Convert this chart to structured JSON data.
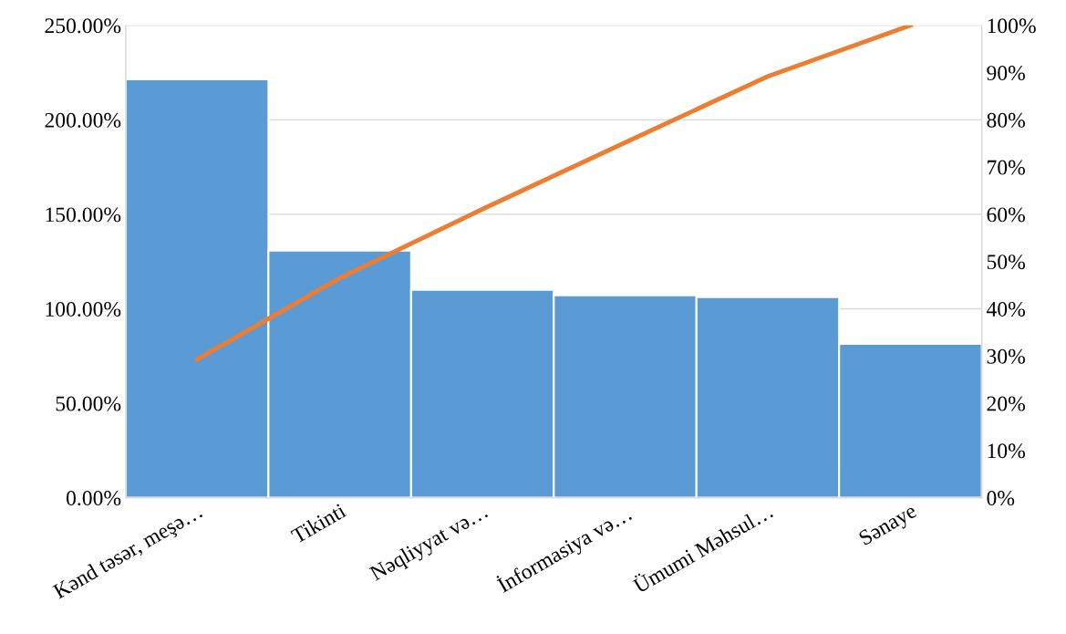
{
  "chart_data": {
    "type": "bar",
    "categories": [
      "Kənd təsər, meşə…",
      "Tikinti",
      "Nəqliyyat və…",
      "İnformasiya və…",
      "Ümumi Məhsul…",
      "Sənaye"
    ],
    "series": [
      {
        "color": "#5b9bd5",
        "values": [
          221.4,
          130.8,
          110.0,
          107.1,
          106.1,
          81.4
        ]
      },
      {
        "type": "line",
        "axis": "y2",
        "color": "#ed7d31",
        "values": [
          29.3,
          46.5,
          61.1,
          75.2,
          89.2,
          100
        ]
      }
    ],
    "ylim": [
      0,
      250
    ],
    "yticks": [
      {
        "value": 0,
        "label": "0.00%"
      },
      {
        "value": 50,
        "label": "50.00%"
      },
      {
        "value": 100,
        "label": "100.00%"
      },
      {
        "value": 150,
        "label": "150.00%"
      },
      {
        "value": 200,
        "label": "200.00%"
      },
      {
        "value": 250,
        "label": "250.00%"
      }
    ],
    "y2lim": [
      0,
      100
    ],
    "y2ticks": [
      {
        "value": 0,
        "label": "0%"
      },
      {
        "value": 10,
        "label": "10%"
      },
      {
        "value": 20,
        "label": "20%"
      },
      {
        "value": 30,
        "label": "30%"
      },
      {
        "value": 40,
        "label": "40%"
      },
      {
        "value": 50,
        "label": "50%"
      },
      {
        "value": 60,
        "label": "60%"
      },
      {
        "value": 70,
        "label": "70%"
      },
      {
        "value": 80,
        "label": "80%"
      },
      {
        "value": 90,
        "label": "90%"
      },
      {
        "value": 100,
        "label": "100%"
      }
    ],
    "grid": "y",
    "marker": "none",
    "line_style": "solid",
    "legend": false
  }
}
